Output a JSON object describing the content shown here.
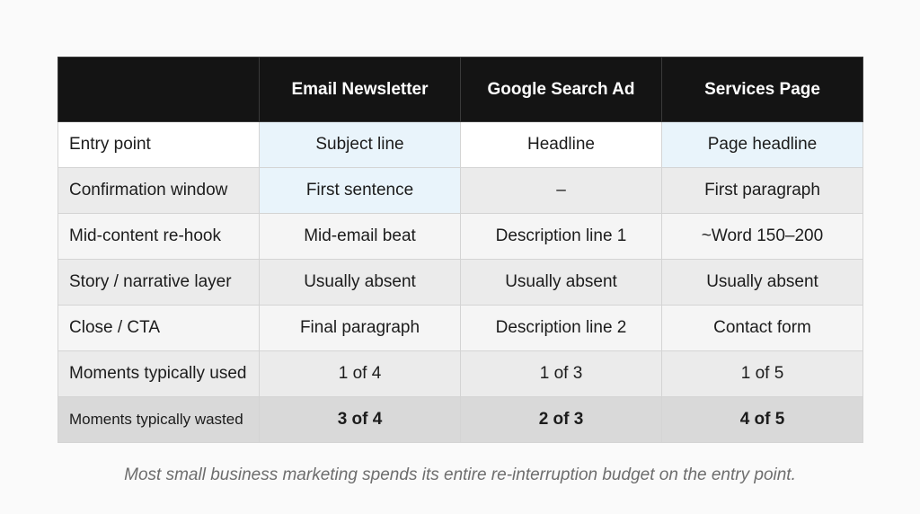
{
  "table": {
    "headers": [
      "",
      "Email Newsletter",
      "Google Search Ad",
      "Services Page"
    ],
    "rows": [
      [
        "Entry point",
        "Subject line",
        "Headline",
        "Page headline"
      ],
      [
        "Confirmation window",
        "First sentence",
        "–",
        "First paragraph"
      ],
      [
        "Mid-content re-hook",
        "Mid-email beat",
        "Description line 1",
        "~Word 150–200"
      ],
      [
        "Story / narrative layer",
        "Usually absent",
        "Usually absent",
        "Usually absent"
      ],
      [
        "Close / CTA",
        "Final paragraph",
        "Description line 2",
        "Contact form"
      ],
      [
        "Moments typically used",
        "1 of 4",
        "1 of 3",
        "1 of 5"
      ],
      [
        "Moments typically wasted",
        "3 of 4",
        "2 of 3",
        "4 of 5"
      ]
    ]
  },
  "caption": "Most small business marketing spends its entire re-interruption budget on the entry point.",
  "colors": {
    "header_bg": "#141414",
    "highlight_bg": "#e9f4fb",
    "wasted_row_bg": "#d9d9d9"
  }
}
